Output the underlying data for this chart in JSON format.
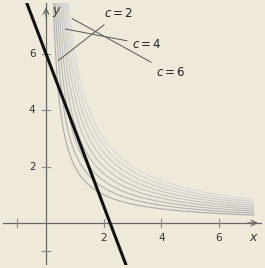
{
  "background_color": "#eee9d9",
  "xlim": [
    -1.5,
    7.5
  ],
  "ylim": [
    -1.5,
    7.8
  ],
  "xticks_pos": [
    2,
    4,
    6
  ],
  "xticks_neg": [
    -2,
    -1
  ],
  "yticks_pos": [
    2,
    4,
    6
  ],
  "yticks_neg": [
    -1
  ],
  "c_values": [
    2,
    2.5,
    3,
    3.5,
    4,
    4.5,
    5,
    5.5,
    6
  ],
  "constraint_slope": -2.7,
  "constraint_intercept": 6.0,
  "constraint_color": "#111111",
  "constraint_lw": 2.2,
  "axis_color": "#666666",
  "tick_color": "#888888",
  "label_fontsize": 9,
  "tick_label_fontsize": 7.5,
  "annotation_fontsize": 8.5
}
